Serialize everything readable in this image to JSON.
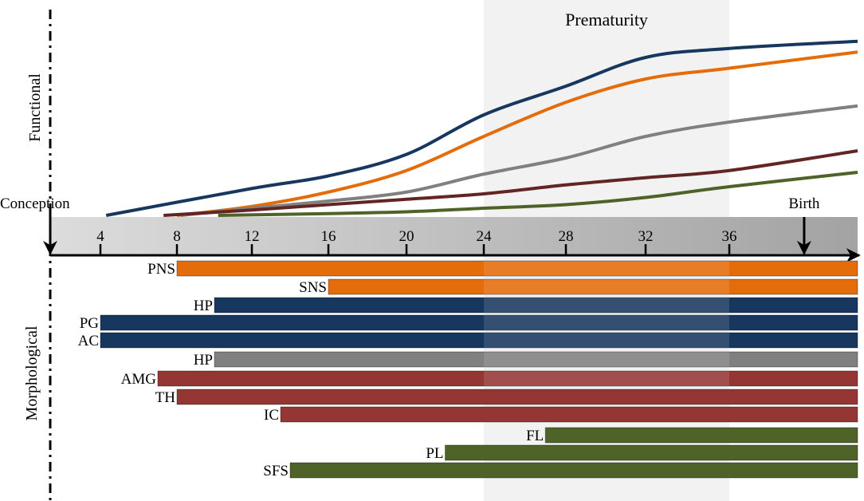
{
  "chart_data": {
    "type": "timeline",
    "title": "",
    "x_unit": "gestational weeks",
    "x_range": [
      0,
      42
    ],
    "ticks": [
      4,
      8,
      12,
      16,
      20,
      24,
      28,
      32,
      36
    ],
    "tick_labels": [
      "4",
      "8",
      "12",
      "16",
      "20",
      "24",
      "28",
      "32",
      "36"
    ],
    "events": [
      {
        "name": "conception",
        "label": "Conception",
        "week": 0
      },
      {
        "name": "birth",
        "label": "Birth",
        "week": 39.5
      }
    ],
    "region": {
      "label": "Prematurity",
      "start_week": 24,
      "end_week": 36,
      "color": "#f2f2f2"
    },
    "section_labels": {
      "functional": "Functional",
      "morphological": "Morphological"
    },
    "functional_curves": {
      "y_unit": "relative functional maturation (0-1)",
      "ylim": [
        0,
        1
      ],
      "series": [
        {
          "name": "navy",
          "color": "#17375E",
          "points": [
            [
              4.3,
              0.0
            ],
            [
              12,
              0.15
            ],
            [
              16,
              0.22
            ],
            [
              20,
              0.34
            ],
            [
              24,
              0.56
            ],
            [
              28,
              0.72
            ],
            [
              32,
              0.88
            ],
            [
              36,
              0.93
            ],
            [
              42,
              0.97
            ]
          ]
        },
        {
          "name": "orange",
          "color": "#E46C0A",
          "points": [
            [
              8,
              0.0
            ],
            [
              12,
              0.05
            ],
            [
              16,
              0.13
            ],
            [
              20,
              0.25
            ],
            [
              24,
              0.44
            ],
            [
              28,
              0.63
            ],
            [
              32,
              0.76
            ],
            [
              36,
              0.82
            ],
            [
              42,
              0.91
            ]
          ]
        },
        {
          "name": "grey",
          "color": "#808080",
          "points": [
            [
              8.2,
              0.0
            ],
            [
              12,
              0.04
            ],
            [
              16,
              0.08
            ],
            [
              20,
              0.13
            ],
            [
              24,
              0.23
            ],
            [
              28,
              0.32
            ],
            [
              32,
              0.44
            ],
            [
              36,
              0.52
            ],
            [
              42,
              0.61
            ]
          ]
        },
        {
          "name": "dark-red",
          "color": "#632523",
          "points": [
            [
              7.3,
              0.0
            ],
            [
              12,
              0.03
            ],
            [
              16,
              0.06
            ],
            [
              20,
              0.09
            ],
            [
              24,
              0.12
            ],
            [
              28,
              0.17
            ],
            [
              32,
              0.21
            ],
            [
              36,
              0.25
            ],
            [
              42,
              0.36
            ]
          ]
        },
        {
          "name": "green",
          "color": "#4F6228",
          "points": [
            [
              10.2,
              0.0
            ],
            [
              16,
              0.01
            ],
            [
              20,
              0.02
            ],
            [
              24,
              0.04
            ],
            [
              28,
              0.06
            ],
            [
              32,
              0.1
            ],
            [
              36,
              0.16
            ],
            [
              42,
              0.24
            ]
          ]
        }
      ]
    },
    "morphological_bars": [
      {
        "label": "PNS",
        "start_week": 8,
        "end_week": 42,
        "color": "#E46C0A"
      },
      {
        "label": "SNS",
        "start_week": 16,
        "end_week": 42,
        "color": "#E46C0A"
      },
      {
        "label": "HP",
        "start_week": 10,
        "end_week": 42,
        "color": "#17375E"
      },
      {
        "label": "PG",
        "start_week": 4,
        "end_week": 42,
        "color": "#17375E"
      },
      {
        "label": "AC",
        "start_week": 4,
        "end_week": 42,
        "color": "#17375E"
      },
      {
        "label": "HP",
        "start_week": 10,
        "end_week": 42,
        "color": "#808080"
      },
      {
        "label": "AMG",
        "start_week": 7,
        "end_week": 42,
        "color": "#943634"
      },
      {
        "label": "TH",
        "start_week": 8,
        "end_week": 42,
        "color": "#943634"
      },
      {
        "label": "IC",
        "start_week": 13.5,
        "end_week": 42,
        "color": "#943634"
      },
      {
        "label": "FL",
        "start_week": 27,
        "end_week": 42,
        "color": "#4F6228"
      },
      {
        "label": "PL",
        "start_week": 22,
        "end_week": 42,
        "color": "#4F6228"
      },
      {
        "label": "SFS",
        "start_week": 14,
        "end_week": 42,
        "color": "#4F6228"
      }
    ]
  }
}
